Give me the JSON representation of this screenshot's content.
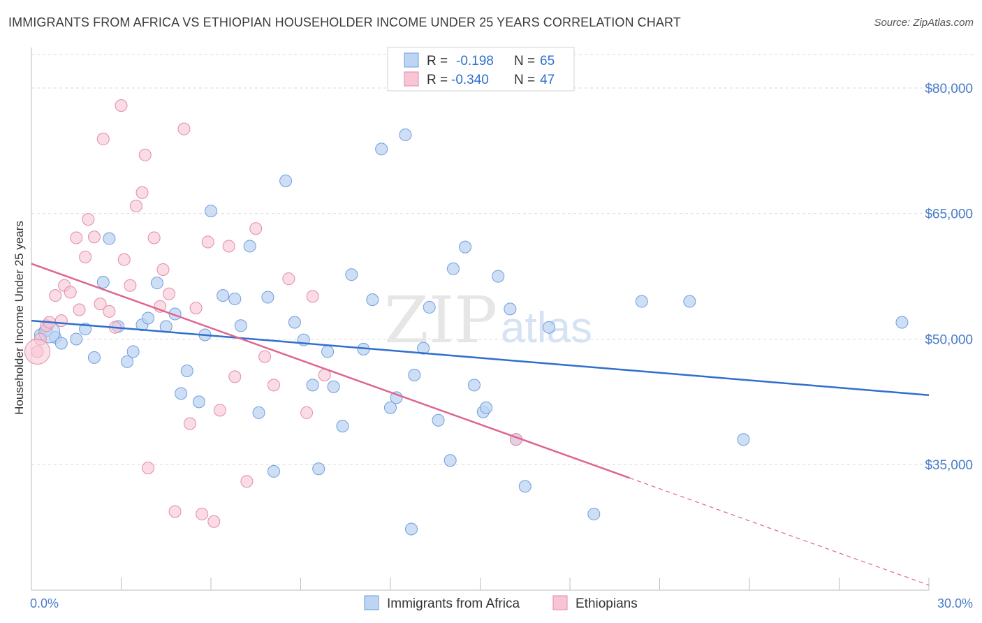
{
  "title": "IMMIGRANTS FROM AFRICA VS ETHIOPIAN HOUSEHOLDER INCOME UNDER 25 YEARS CORRELATION CHART",
  "source": "Source: ZipAtlas.com",
  "watermark": {
    "zip": "ZIP",
    "atlas": "atlas"
  },
  "colors": {
    "blue_fill": "#bdd4f2",
    "blue_stroke": "#6d9ee0",
    "blue_line": "#2f6fce",
    "pink_fill": "#f7c5d4",
    "pink_stroke": "#e48aa7",
    "pink_line": "#de6591",
    "grid": "#d9d9d9",
    "tick_text": "#4a7cc9"
  },
  "legend": {
    "rows": [
      {
        "r_label": "R = ",
        "r_value": "-0.198",
        "n_label": "N = ",
        "n_value": "65"
      },
      {
        "r_label": "R = ",
        "r_value": "-0.340",
        "n_label": "N = ",
        "n_value": "47"
      }
    ]
  },
  "chart_data": {
    "type": "scatter",
    "title": "IMMIGRANTS FROM AFRICA VS ETHIOPIAN HOUSEHOLDER INCOME UNDER 25 YEARS CORRELATION CHART",
    "xlabel": "",
    "ylabel": "Householder Income Under 25 years",
    "xlim": [
      0,
      30
    ],
    "ylim": [
      20000,
      84000
    ],
    "x_tick_labels": [
      "0.0%",
      "30.0%"
    ],
    "y_ticks": [
      35000,
      50000,
      65000,
      80000
    ],
    "y_tick_labels": [
      "$35,000",
      "$50,000",
      "$65,000",
      "$80,000"
    ],
    "grid": true,
    "legend_position": "bottom",
    "series": [
      {
        "name": "Immigrants from Africa",
        "color": "#6d9ee0",
        "trend": {
          "x": [
            0,
            30
          ],
          "y": [
            52200,
            43300
          ]
        },
        "points": [
          [
            0.3,
            50500
          ],
          [
            0.5,
            51000
          ],
          [
            0.8,
            50200
          ],
          [
            1.0,
            49500
          ],
          [
            1.5,
            50000
          ],
          [
            1.8,
            51200
          ],
          [
            2.1,
            47800
          ],
          [
            2.4,
            56800
          ],
          [
            2.6,
            62000
          ],
          [
            2.9,
            51500
          ],
          [
            3.2,
            47300
          ],
          [
            3.4,
            48500
          ],
          [
            3.7,
            51700
          ],
          [
            3.9,
            52500
          ],
          [
            4.2,
            56700
          ],
          [
            4.5,
            51500
          ],
          [
            4.8,
            53000
          ],
          [
            5.0,
            43500
          ],
          [
            5.2,
            46200
          ],
          [
            5.6,
            42500
          ],
          [
            5.8,
            50500
          ],
          [
            6.0,
            65300
          ],
          [
            6.4,
            55200
          ],
          [
            6.8,
            54800
          ],
          [
            7.0,
            51600
          ],
          [
            7.3,
            61100
          ],
          [
            7.6,
            41200
          ],
          [
            7.9,
            55000
          ],
          [
            8.1,
            34200
          ],
          [
            8.5,
            68900
          ],
          [
            8.8,
            52000
          ],
          [
            9.1,
            49900
          ],
          [
            9.4,
            44500
          ],
          [
            9.6,
            34500
          ],
          [
            9.9,
            48500
          ],
          [
            10.1,
            44300
          ],
          [
            10.4,
            39600
          ],
          [
            10.7,
            57700
          ],
          [
            11.1,
            48800
          ],
          [
            11.4,
            54700
          ],
          [
            11.7,
            72700
          ],
          [
            12.0,
            41800
          ],
          [
            12.2,
            43000
          ],
          [
            12.5,
            74400
          ],
          [
            12.8,
            45700
          ],
          [
            13.1,
            48900
          ],
          [
            13.3,
            53800
          ],
          [
            13.6,
            40300
          ],
          [
            14.0,
            35500
          ],
          [
            14.5,
            61000
          ],
          [
            14.8,
            44500
          ],
          [
            15.1,
            41300
          ],
          [
            15.2,
            41800
          ],
          [
            15.6,
            57500
          ],
          [
            16.0,
            53600
          ],
          [
            16.2,
            38000
          ],
          [
            16.5,
            32400
          ],
          [
            17.3,
            51400
          ],
          [
            18.8,
            29100
          ],
          [
            20.4,
            54500
          ],
          [
            22.0,
            54500
          ],
          [
            23.8,
            38000
          ],
          [
            29.1,
            52000
          ],
          [
            12.7,
            27300
          ],
          [
            14.1,
            58400
          ]
        ]
      },
      {
        "name": "Ethiopians",
        "color": "#e48aa7",
        "trend": {
          "x": [
            0,
            20
          ],
          "y": [
            59000,
            33400
          ]
        },
        "trend_dashed": {
          "x": [
            20,
            30
          ],
          "y": [
            33400,
            20600
          ]
        },
        "points": [
          [
            0.2,
            48500
          ],
          [
            0.3,
            50000
          ],
          [
            0.5,
            51600
          ],
          [
            0.6,
            52000
          ],
          [
            0.8,
            55200
          ],
          [
            1.0,
            52200
          ],
          [
            1.1,
            56400
          ],
          [
            1.3,
            55600
          ],
          [
            1.5,
            62100
          ],
          [
            1.6,
            53500
          ],
          [
            1.8,
            59800
          ],
          [
            1.9,
            64300
          ],
          [
            2.1,
            62200
          ],
          [
            2.3,
            54200
          ],
          [
            2.4,
            73900
          ],
          [
            2.6,
            53300
          ],
          [
            2.8,
            51400
          ],
          [
            3.0,
            77900
          ],
          [
            3.1,
            59500
          ],
          [
            3.3,
            56400
          ],
          [
            3.5,
            65900
          ],
          [
            3.7,
            67500
          ],
          [
            3.8,
            72000
          ],
          [
            3.9,
            34600
          ],
          [
            4.1,
            62100
          ],
          [
            4.3,
            53900
          ],
          [
            4.4,
            58300
          ],
          [
            4.6,
            55400
          ],
          [
            4.8,
            29400
          ],
          [
            5.1,
            75100
          ],
          [
            5.3,
            39900
          ],
          [
            5.5,
            53700
          ],
          [
            5.7,
            29100
          ],
          [
            5.9,
            61600
          ],
          [
            6.1,
            28200
          ],
          [
            6.3,
            41500
          ],
          [
            6.6,
            61100
          ],
          [
            6.8,
            45500
          ],
          [
            7.2,
            33000
          ],
          [
            7.5,
            63200
          ],
          [
            7.8,
            47900
          ],
          [
            8.1,
            44500
          ],
          [
            8.6,
            57200
          ],
          [
            9.2,
            41200
          ],
          [
            9.4,
            55100
          ],
          [
            9.8,
            45700
          ],
          [
            16.2,
            38000
          ]
        ]
      }
    ]
  }
}
